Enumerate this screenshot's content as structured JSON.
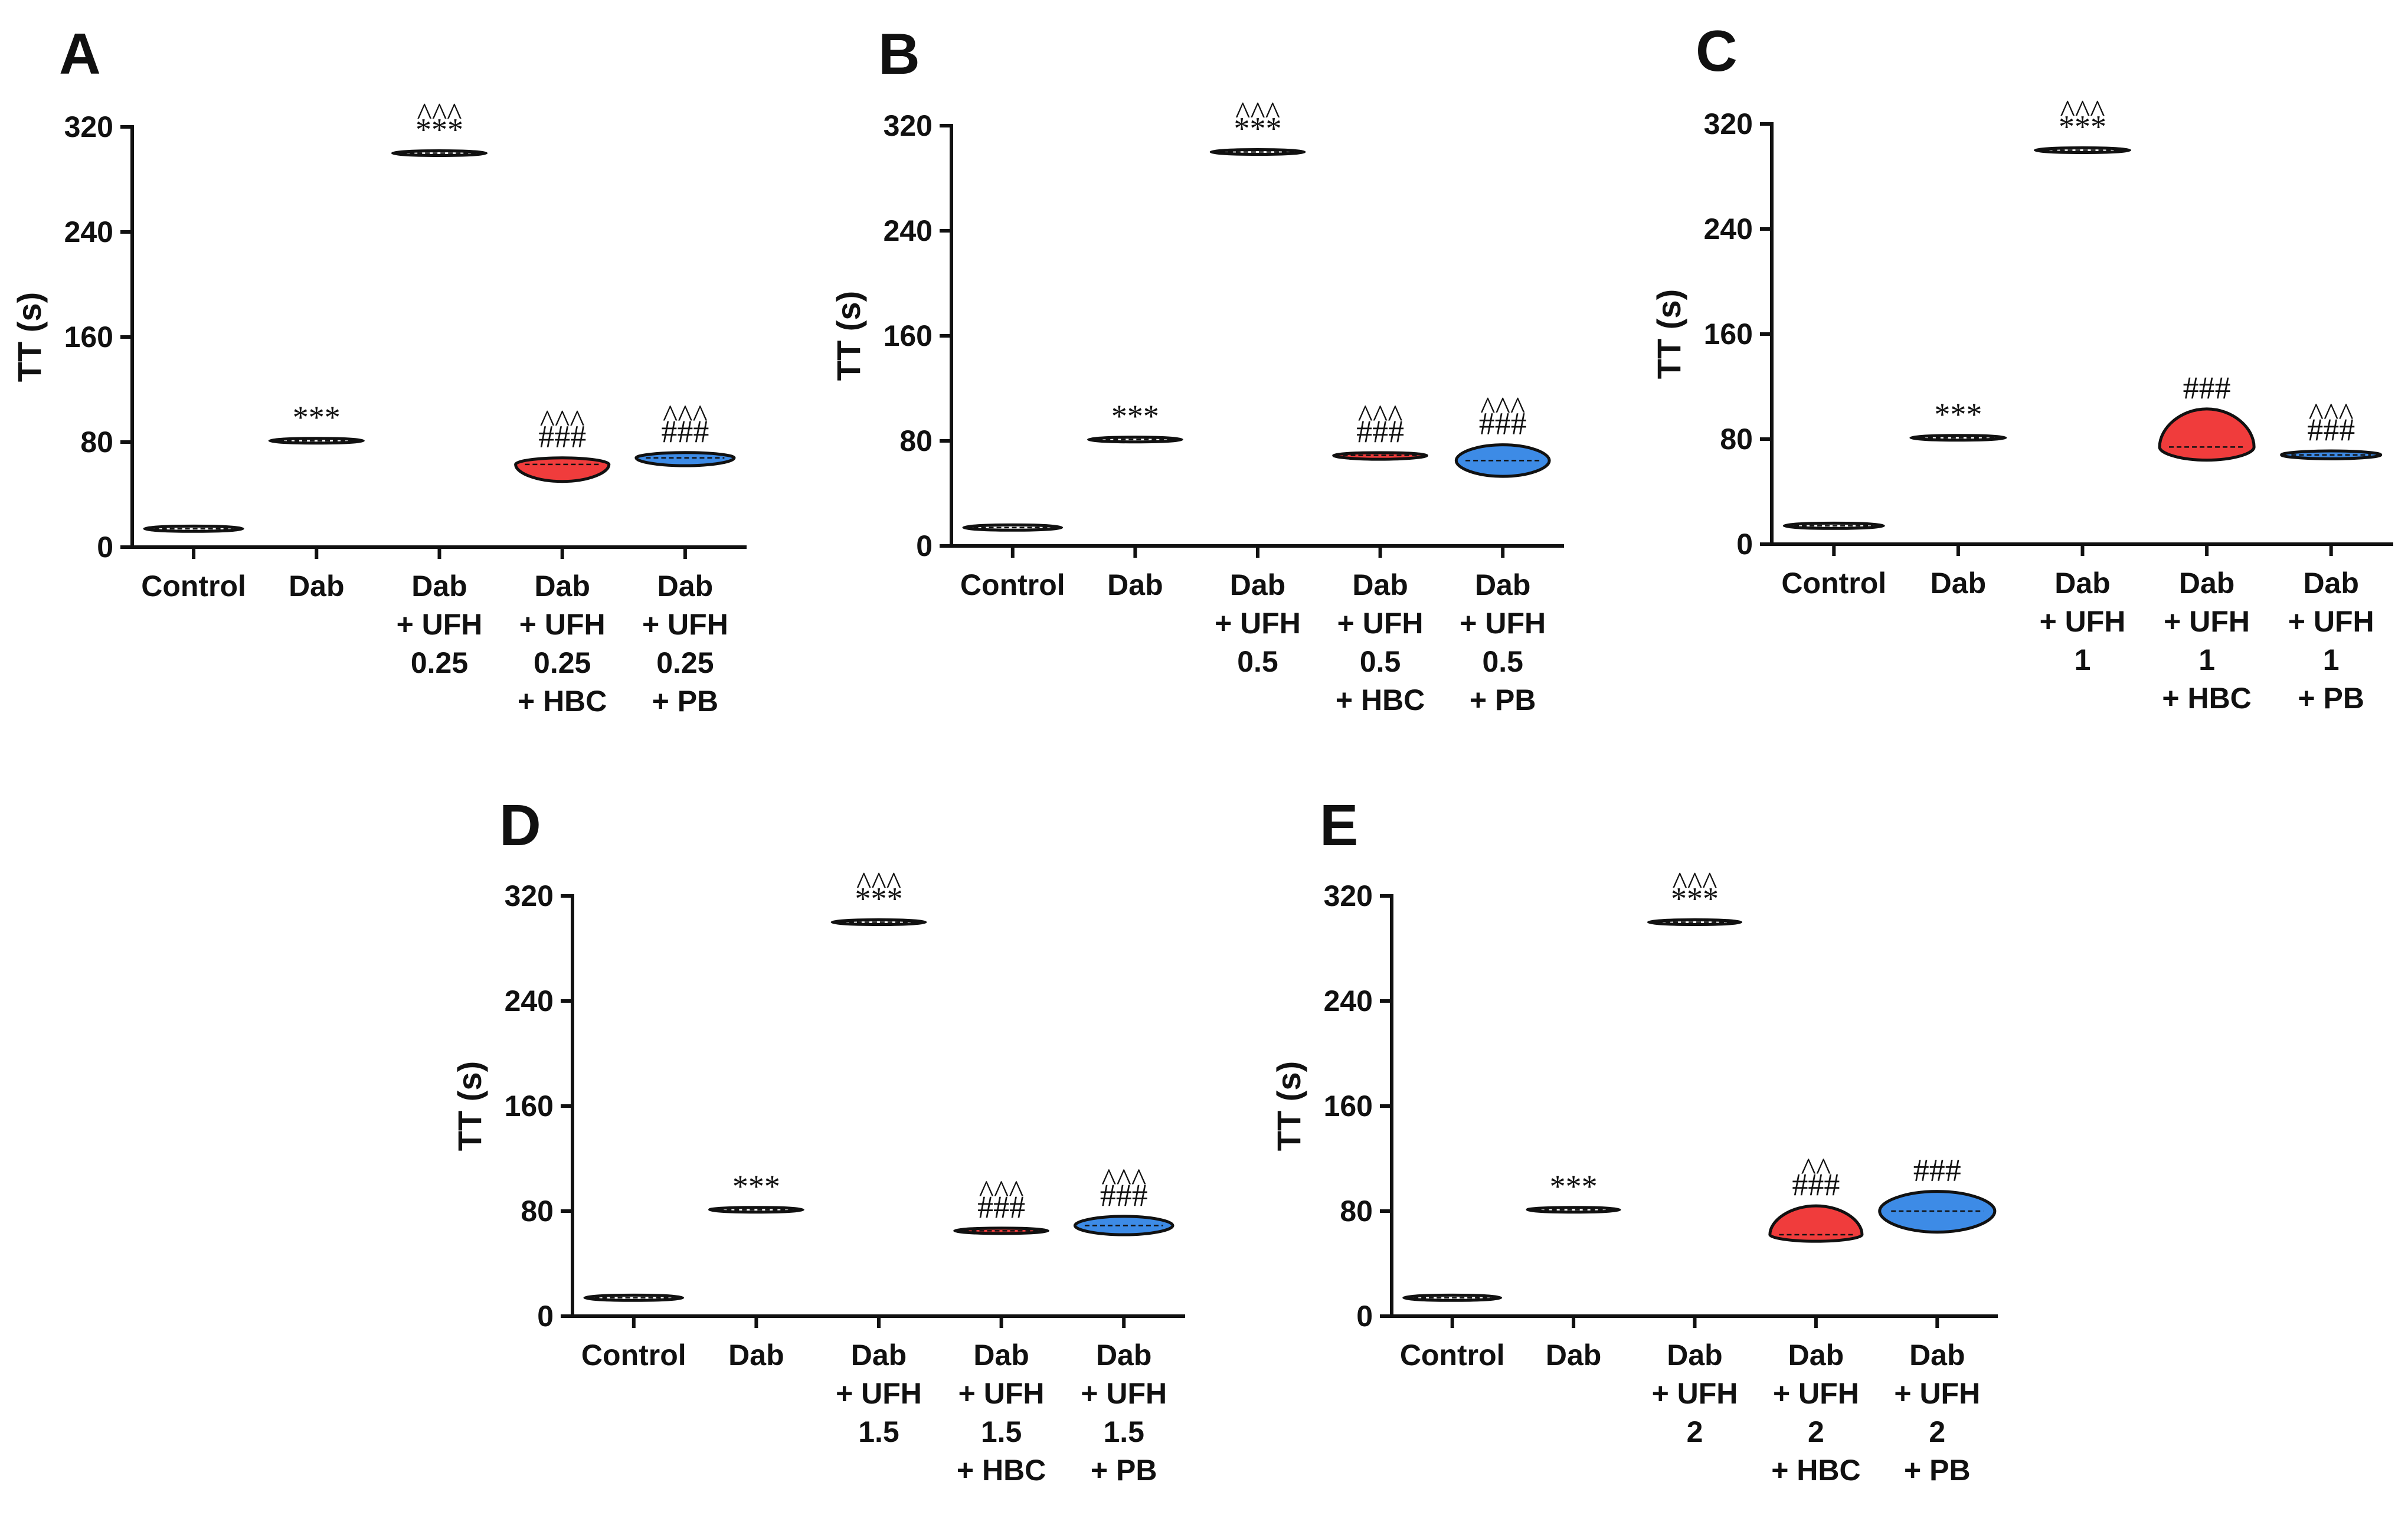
{
  "colors": {
    "control": "#ffffff",
    "dab": "#ffffff",
    "ufh": "#ffffff",
    "hbc": "#f03c3c",
    "pb": "#3d8be6",
    "outline": "#111111"
  },
  "chart_data": [
    {
      "panel": "A",
      "type": "violin",
      "ylabel": "TT (s)",
      "ylim": [
        0,
        320
      ],
      "yticks": [
        "0",
        "80",
        "160",
        "240",
        "320"
      ],
      "categories": [
        {
          "lines": [
            "Control"
          ],
          "color_key": "control",
          "median": 14,
          "min": 12,
          "max": 16,
          "width": 0.42,
          "sig": []
        },
        {
          "lines": [
            "Dab"
          ],
          "color_key": "dab",
          "median": 81,
          "min": 80,
          "max": 82,
          "width": 0.4,
          "sig": [
            "***"
          ]
        },
        {
          "lines": [
            "Dab",
            "+ UFH",
            "0.25"
          ],
          "color_key": "ufh",
          "median": 300,
          "min": 299,
          "max": 301,
          "width": 0.4,
          "sig": [
            "^^^",
            "***"
          ]
        },
        {
          "lines": [
            "Dab",
            "+ UFH",
            "0.25",
            "+ HBC"
          ],
          "color_key": "hbc",
          "median": 63,
          "min": 50,
          "max": 68,
          "width": 0.4,
          "sig": [
            "^^^",
            "###"
          ]
        },
        {
          "lines": [
            "Dab",
            "+ UFH",
            "0.25",
            "+ PB"
          ],
          "color_key": "pb",
          "median": 68,
          "min": 62,
          "max": 72,
          "width": 0.42,
          "sig": [
            "^^^",
            "###"
          ]
        }
      ]
    },
    {
      "panel": "B",
      "type": "violin",
      "ylabel": "TT (s)",
      "ylim": [
        0,
        320
      ],
      "yticks": [
        "0",
        "80",
        "160",
        "240",
        "320"
      ],
      "categories": [
        {
          "lines": [
            "Control"
          ],
          "color_key": "control",
          "median": 14,
          "min": 12,
          "max": 16,
          "width": 0.42,
          "sig": []
        },
        {
          "lines": [
            "Dab"
          ],
          "color_key": "dab",
          "median": 81,
          "min": 80,
          "max": 82,
          "width": 0.4,
          "sig": [
            "***"
          ]
        },
        {
          "lines": [
            "Dab",
            "+ UFH",
            "0.5"
          ],
          "color_key": "ufh",
          "median": 300,
          "min": 299,
          "max": 301,
          "width": 0.4,
          "sig": [
            "^^^",
            "***"
          ]
        },
        {
          "lines": [
            "Dab",
            "+ UFH",
            "0.5",
            "+ HBC"
          ],
          "color_key": "hbc",
          "median": 69,
          "min": 66,
          "max": 71,
          "width": 0.4,
          "sig": [
            "^^^",
            "###"
          ]
        },
        {
          "lines": [
            "Dab",
            "+ UFH",
            "0.5",
            "+ PB"
          ],
          "color_key": "pb",
          "median": 65,
          "min": 53,
          "max": 77,
          "width": 0.4,
          "sig": [
            "^^^",
            "###"
          ]
        }
      ]
    },
    {
      "panel": "C",
      "type": "violin",
      "ylabel": "TT (s)",
      "ylim": [
        0,
        320
      ],
      "yticks": [
        "0",
        "80",
        "160",
        "240",
        "320"
      ],
      "categories": [
        {
          "lines": [
            "Control"
          ],
          "color_key": "control",
          "median": 14,
          "min": 12,
          "max": 16,
          "width": 0.42,
          "sig": []
        },
        {
          "lines": [
            "Dab"
          ],
          "color_key": "dab",
          "median": 81,
          "min": 80,
          "max": 82,
          "width": 0.4,
          "sig": [
            "***"
          ]
        },
        {
          "lines": [
            "Dab",
            "+ UFH",
            "1"
          ],
          "color_key": "ufh",
          "median": 300,
          "min": 299,
          "max": 301,
          "width": 0.4,
          "sig": [
            "^^^",
            "***"
          ]
        },
        {
          "lines": [
            "Dab",
            "+ UFH",
            "1",
            "+ HBC"
          ],
          "color_key": "hbc",
          "median": 74,
          "min": 64,
          "max": 103,
          "width": 0.4,
          "sig": [
            "###"
          ]
        },
        {
          "lines": [
            "Dab",
            "+ UFH",
            "1",
            "+ PB"
          ],
          "color_key": "pb",
          "median": 68,
          "min": 65,
          "max": 71,
          "width": 0.42,
          "sig": [
            "^^^",
            "###"
          ]
        }
      ]
    },
    {
      "panel": "D",
      "type": "violin",
      "ylabel": "TT (s)",
      "ylim": [
        0,
        320
      ],
      "yticks": [
        "0",
        "80",
        "160",
        "240",
        "320"
      ],
      "categories": [
        {
          "lines": [
            "Control"
          ],
          "color_key": "control",
          "median": 14,
          "min": 12,
          "max": 16,
          "width": 0.42,
          "sig": []
        },
        {
          "lines": [
            "Dab"
          ],
          "color_key": "dab",
          "median": 81,
          "min": 80,
          "max": 82,
          "width": 0.4,
          "sig": [
            "***"
          ]
        },
        {
          "lines": [
            "Dab",
            "+ UFH",
            "1.5"
          ],
          "color_key": "ufh",
          "median": 300,
          "min": 299,
          "max": 301,
          "width": 0.4,
          "sig": [
            "^^^",
            "***"
          ]
        },
        {
          "lines": [
            "Dab",
            "+ UFH",
            "1.5",
            "+ HBC"
          ],
          "color_key": "hbc",
          "median": 65,
          "min": 63,
          "max": 67,
          "width": 0.4,
          "sig": [
            "^^^",
            "###"
          ]
        },
        {
          "lines": [
            "Dab",
            "+ UFH",
            "1.5",
            "+ PB"
          ],
          "color_key": "pb",
          "median": 69,
          "min": 62,
          "max": 76,
          "width": 0.42,
          "sig": [
            "^^^",
            "###"
          ]
        }
      ]
    },
    {
      "panel": "E",
      "type": "violin",
      "ylabel": "TT (s)",
      "ylim": [
        0,
        320
      ],
      "yticks": [
        "0",
        "80",
        "160",
        "240",
        "320"
      ],
      "categories": [
        {
          "lines": [
            "Control"
          ],
          "color_key": "control",
          "median": 14,
          "min": 12,
          "max": 16,
          "width": 0.42,
          "sig": []
        },
        {
          "lines": [
            "Dab"
          ],
          "color_key": "dab",
          "median": 81,
          "min": 80,
          "max": 82,
          "width": 0.4,
          "sig": [
            "***"
          ]
        },
        {
          "lines": [
            "Dab",
            "+ UFH",
            "2"
          ],
          "color_key": "ufh",
          "median": 300,
          "min": 299,
          "max": 301,
          "width": 0.4,
          "sig": [
            "^^^",
            "***"
          ]
        },
        {
          "lines": [
            "Dab",
            "+ UFH",
            "2",
            "+ HBC"
          ],
          "color_key": "hbc",
          "median": 62,
          "min": 57,
          "max": 84,
          "width": 0.4,
          "sig": [
            "^^",
            "###"
          ]
        },
        {
          "lines": [
            "Dab",
            "+ UFH",
            "2",
            "+ PB"
          ],
          "color_key": "pb",
          "median": 80,
          "min": 64,
          "max": 95,
          "width": 0.5,
          "sig": [
            "###"
          ]
        }
      ]
    }
  ]
}
